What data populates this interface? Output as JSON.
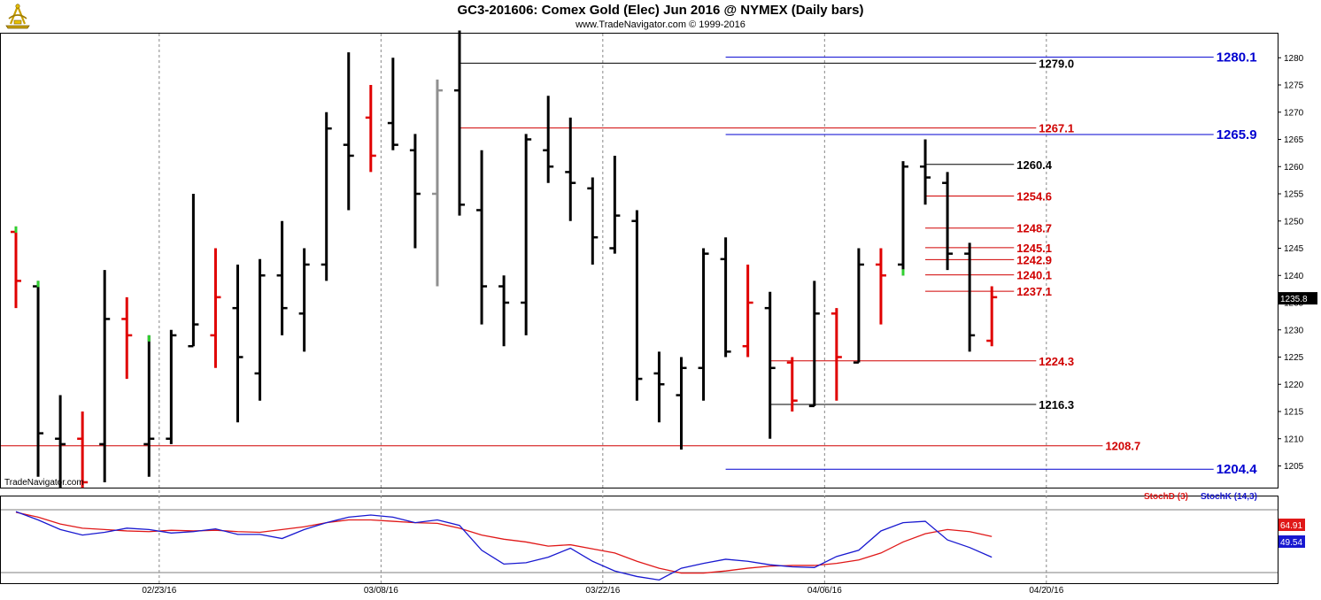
{
  "header": {
    "title": "GC3-201606:  Comex Gold (Elec) Jun 2016 @ NYMEX  (Daily bars)",
    "subtitle": "www.TradeNavigator.com © 1999-2016",
    "watermark": "TradeNavigator.com"
  },
  "icons": {
    "logo": "sextant-logo-icon"
  },
  "colors": {
    "up_bar": "#000000",
    "down_bar": "#e00000",
    "grey_bar": "#909090",
    "blue_line": "#0000d0",
    "red_line": "#d00000",
    "black_line": "#000000",
    "marker_green": "#30d030",
    "stoch_d": "#e01818",
    "stoch_k": "#1818d0"
  },
  "chart_data": [
    {
      "type": "ohlc",
      "title": "GC3-201606:  Comex Gold (Elec) Jun 2016 @ NYMEX  (Daily bars)",
      "ylim": [
        1200,
        1285
      ],
      "y_ticks": [
        1205,
        1210,
        1215,
        1220,
        1225,
        1230,
        1235,
        1240,
        1245,
        1250,
        1255,
        1260,
        1265,
        1270,
        1275,
        1280
      ],
      "x_ticks": [
        "02/23/16",
        "03/08/16",
        "03/22/16",
        "04/06/16",
        "04/20/16"
      ],
      "x_tick_index": [
        6.5,
        16.5,
        26.5,
        36.5,
        46.5
      ],
      "last_price": "1235.8",
      "bars": [
        {
          "o": 1248,
          "h": 1249,
          "l": 1234,
          "c": 1239,
          "d": "down",
          "m": "high"
        },
        {
          "o": 1238,
          "h": 1239,
          "l": 1203,
          "c": 1211,
          "d": "up",
          "m": "high"
        },
        {
          "o": 1210,
          "h": 1218,
          "l": 1201,
          "c": 1209,
          "d": "up"
        },
        {
          "o": 1210,
          "h": 1215,
          "l": 1201,
          "c": 1202,
          "d": "down"
        },
        {
          "o": 1209,
          "h": 1241,
          "l": 1202,
          "c": 1232,
          "d": "up"
        },
        {
          "o": 1232,
          "h": 1236,
          "l": 1221,
          "c": 1229,
          "d": "down"
        },
        {
          "o": 1209,
          "h": 1229,
          "l": 1203,
          "c": 1210,
          "d": "up",
          "m": "high"
        },
        {
          "o": 1210,
          "h": 1230,
          "l": 1209,
          "c": 1229,
          "d": "up"
        },
        {
          "o": 1227,
          "h": 1255,
          "l": 1227,
          "c": 1231,
          "d": "up"
        },
        {
          "o": 1229,
          "h": 1245,
          "l": 1223,
          "c": 1236,
          "d": "down"
        },
        {
          "o": 1234,
          "h": 1242,
          "l": 1213,
          "c": 1225,
          "d": "up"
        },
        {
          "o": 1222,
          "h": 1243,
          "l": 1217,
          "c": 1240,
          "d": "up"
        },
        {
          "o": 1240,
          "h": 1250,
          "l": 1229,
          "c": 1234,
          "d": "up"
        },
        {
          "o": 1233,
          "h": 1245,
          "l": 1226,
          "c": 1242,
          "d": "up"
        },
        {
          "o": 1242,
          "h": 1270,
          "l": 1239,
          "c": 1267,
          "d": "up"
        },
        {
          "o": 1264,
          "h": 1281,
          "l": 1252,
          "c": 1262,
          "d": "up"
        },
        {
          "o": 1269,
          "h": 1275,
          "l": 1259,
          "c": 1262,
          "d": "down"
        },
        {
          "o": 1268,
          "h": 1280,
          "l": 1263,
          "c": 1264,
          "d": "up"
        },
        {
          "o": 1263,
          "h": 1266,
          "l": 1245,
          "c": 1255,
          "d": "up"
        },
        {
          "o": 1255,
          "h": 1276,
          "l": 1238,
          "c": 1274,
          "d": "grey"
        },
        {
          "o": 1274,
          "h": 1285,
          "l": 1251,
          "c": 1253,
          "d": "up"
        },
        {
          "o": 1252,
          "h": 1263,
          "l": 1231,
          "c": 1238,
          "d": "up"
        },
        {
          "o": 1238,
          "h": 1240,
          "l": 1227,
          "c": 1235,
          "d": "up"
        },
        {
          "o": 1235,
          "h": 1266,
          "l": 1229,
          "c": 1265,
          "d": "up"
        },
        {
          "o": 1263,
          "h": 1273,
          "l": 1257,
          "c": 1260,
          "d": "up"
        },
        {
          "o": 1259,
          "h": 1269,
          "l": 1250,
          "c": 1257,
          "d": "up"
        },
        {
          "o": 1256,
          "h": 1258,
          "l": 1242,
          "c": 1247,
          "d": "up"
        },
        {
          "o": 1245,
          "h": 1262,
          "l": 1244,
          "c": 1251,
          "d": "up"
        },
        {
          "o": 1250,
          "h": 1252,
          "l": 1217,
          "c": 1221,
          "d": "up"
        },
        {
          "o": 1222,
          "h": 1226,
          "l": 1213,
          "c": 1220,
          "d": "up"
        },
        {
          "o": 1218,
          "h": 1225,
          "l": 1208,
          "c": 1223,
          "d": "up"
        },
        {
          "o": 1223,
          "h": 1245,
          "l": 1217,
          "c": 1244,
          "d": "up"
        },
        {
          "o": 1243,
          "h": 1247,
          "l": 1225,
          "c": 1226,
          "d": "up"
        },
        {
          "o": 1227,
          "h": 1242,
          "l": 1225,
          "c": 1235,
          "d": "down"
        },
        {
          "o": 1234,
          "h": 1237,
          "l": 1210,
          "c": 1223,
          "d": "up"
        },
        {
          "o": 1224,
          "h": 1225,
          "l": 1215,
          "c": 1217,
          "d": "down"
        },
        {
          "o": 1216,
          "h": 1239,
          "l": 1216,
          "c": 1233,
          "d": "up"
        },
        {
          "o": 1233,
          "h": 1234,
          "l": 1217,
          "c": 1225,
          "d": "down"
        },
        {
          "o": 1224,
          "h": 1245,
          "l": 1224,
          "c": 1242,
          "d": "up"
        },
        {
          "o": 1242,
          "h": 1245,
          "l": 1231,
          "c": 1240,
          "d": "down"
        },
        {
          "o": 1242,
          "h": 1261,
          "l": 1240,
          "c": 1260,
          "d": "up",
          "m": "low"
        },
        {
          "o": 1260,
          "h": 1265,
          "l": 1253,
          "c": 1258,
          "d": "up"
        },
        {
          "o": 1257,
          "h": 1259,
          "l": 1241,
          "c": 1244,
          "d": "up"
        },
        {
          "o": 1244,
          "h": 1246,
          "l": 1226,
          "c": 1229,
          "d": "up"
        },
        {
          "o": 1228,
          "h": 1238,
          "l": 1227,
          "c": 1236,
          "d": "down"
        }
      ],
      "levels": [
        {
          "value": 1280.1,
          "label": "1280.1",
          "color": "blue",
          "from": 32,
          "to": 54
        },
        {
          "value": 1279.0,
          "label": "1279.0",
          "color": "black",
          "from": 20,
          "to": 46
        },
        {
          "value": 1267.1,
          "label": "1267.1",
          "color": "red",
          "from": 20,
          "to": 46
        },
        {
          "value": 1265.9,
          "label": "1265.9",
          "color": "blue",
          "from": 32,
          "to": 54
        },
        {
          "value": 1260.4,
          "label": "1260.4",
          "color": "black",
          "from": 41,
          "to": 45
        },
        {
          "value": 1254.6,
          "label": "1254.6",
          "color": "red",
          "from": 41,
          "to": 45
        },
        {
          "value": 1248.7,
          "label": "1248.7",
          "color": "red",
          "from": 41,
          "to": 45
        },
        {
          "value": 1245.1,
          "label": "1245.1",
          "color": "red",
          "from": 41,
          "to": 45
        },
        {
          "value": 1242.9,
          "label": "1242.9",
          "color": "red",
          "from": 41,
          "to": 45
        },
        {
          "value": 1240.1,
          "label": "1240.1",
          "color": "red",
          "from": 41,
          "to": 45
        },
        {
          "value": 1237.1,
          "label": "1237.1",
          "color": "red",
          "from": 41,
          "to": 45
        },
        {
          "value": 1224.3,
          "label": "1224.3",
          "color": "red",
          "from": 34,
          "to": 46
        },
        {
          "value": 1216.3,
          "label": "1216.3",
          "color": "black",
          "from": 34,
          "to": 46
        },
        {
          "value": 1208.7,
          "label": "1208.7",
          "color": "red",
          "from": -1,
          "to": 49
        },
        {
          "value": 1204.4,
          "label": "1204.4",
          "color": "blue",
          "from": 32,
          "to": 54
        }
      ]
    },
    {
      "type": "line",
      "title": "",
      "ylim": [
        0,
        100
      ],
      "series": [
        {
          "name": "StochD (3)",
          "color": "#e01818",
          "values": [
            95,
            88,
            78,
            72,
            70,
            68,
            67,
            69,
            68,
            69,
            67,
            66,
            70,
            74,
            80,
            84,
            84,
            82,
            80,
            79,
            72,
            62,
            56,
            52,
            46,
            48,
            42,
            36,
            24,
            14,
            7,
            7,
            10,
            14,
            17,
            18,
            18,
            21,
            26,
            36,
            52,
            64,
            70,
            67,
            60
          ]
        },
        {
          "name": "StochK (14,3)",
          "color": "#1818d0",
          "values": [
            96,
            84,
            70,
            62,
            66,
            72,
            70,
            65,
            67,
            71,
            63,
            63,
            57,
            70,
            80,
            88,
            91,
            88,
            80,
            84,
            76,
            40,
            20,
            22,
            30,
            43,
            24,
            10,
            2,
            -3,
            14,
            21,
            27,
            24,
            19,
            16,
            15,
            31,
            40,
            68,
            80,
            82,
            55,
            44,
            30
          ]
        }
      ],
      "last_labels": [
        "64.91",
        "49.54"
      ]
    }
  ]
}
